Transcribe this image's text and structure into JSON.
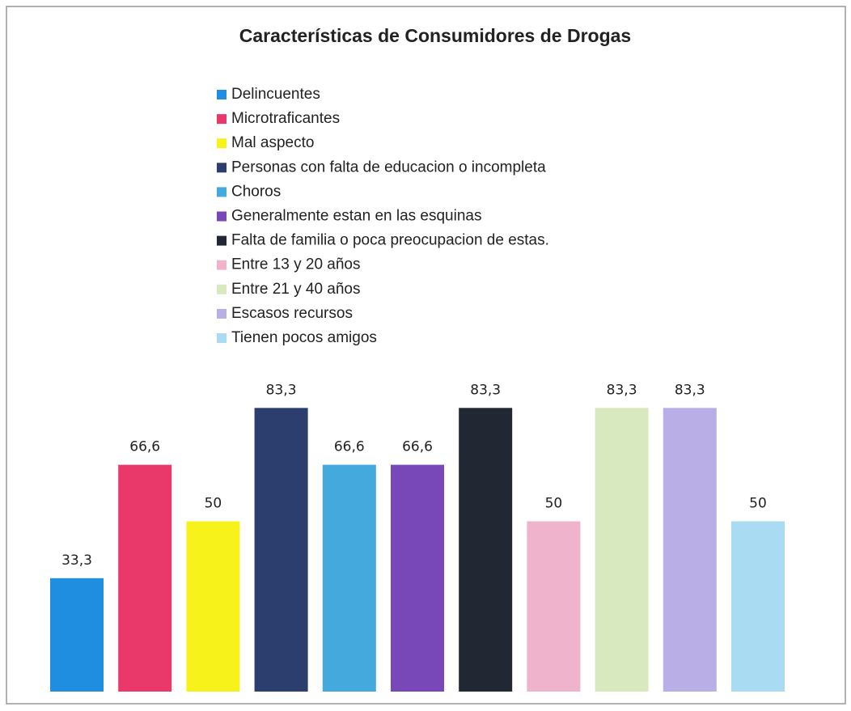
{
  "chart_data": {
    "type": "bar",
    "title": "Características de Consumidores de Drogas",
    "series": [
      {
        "name": "Delincuentes",
        "color": "#1f8ee0",
        "values": [
          33.3
        ],
        "value_labels": [
          "33,3"
        ]
      },
      {
        "name": "Microtraficantes",
        "color": "#e8396a",
        "values": [
          66.6
        ],
        "value_labels": [
          "66,6"
        ]
      },
      {
        "name": "Mal aspecto",
        "color": "#f7f21a",
        "values": [
          50
        ]
      },
      {
        "name": "Personas con falta de educacion o incompleta",
        "color": "#2c3e6e",
        "values": [
          83.3
        ],
        "value_labels": [
          "83,3"
        ]
      },
      {
        "name": "Choros",
        "color": "#44a9dc",
        "values": [
          66.6
        ],
        "value_labels": [
          "66,6"
        ]
      },
      {
        "name": "Generalmente estan en las esquinas",
        "color": "#7847b8",
        "values": [
          66.6
        ],
        "value_labels": [
          "66,6"
        ]
      },
      {
        "name": "Falta de familia o poca preocupacion de estas.",
        "color": "#222833",
        "values": [
          83.3
        ],
        "value_labels": [
          "83,3"
        ]
      },
      {
        "name": "Entre 13 y 20 años",
        "color": "#f0b3cc",
        "values": [
          50
        ]
      },
      {
        "name": "Entre 21 y 40 años",
        "color": "#d8e8bf",
        "values": [
          83.3
        ],
        "value_labels": [
          "83,3"
        ]
      },
      {
        "name": "Escasos recursos",
        "color": "#b9aee6",
        "values": [
          83.3
        ],
        "value_labels": [
          "83,3"
        ]
      },
      {
        "name": "Tienen pocos amigos",
        "color": "#a9dcf2",
        "values": [
          50
        ]
      }
    ]
  }
}
